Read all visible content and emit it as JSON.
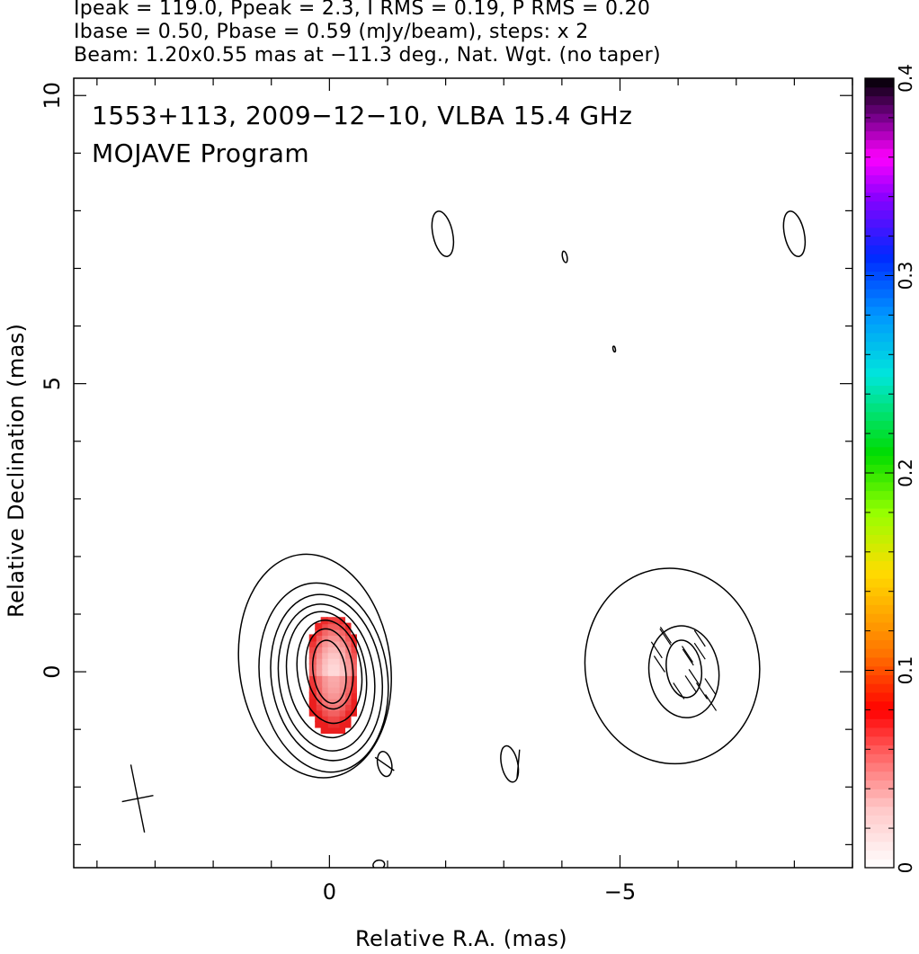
{
  "header": {
    "line1": "Ipeak = 119.0, Ppeak = 2.3, I RMS = 0.19, P RMS = 0.20",
    "line2": "Ibase = 0.50, Pbase = 0.59 (mJy/beam), steps: x 2",
    "line3": "Beam: 1.20x0.55 mas at −11.3 deg., Nat. Wgt. (no taper)"
  },
  "overlay": {
    "title": "1553+113, 2009−12−10, VLBA 15.4 GHz",
    "subtitle": "MOJAVE Program"
  },
  "chart_data": {
    "type": "contour",
    "xlabel": "Relative R.A. (mas)",
    "ylabel": "Relative Declination (mas)",
    "xlim": [
      4.4,
      -9.0
    ],
    "ylim": [
      -3.4,
      10.3
    ],
    "x_ticks": [
      0,
      -5
    ],
    "x_tick_labels": [
      "0",
      "−5"
    ],
    "y_ticks": [
      0,
      5,
      10
    ],
    "y_tick_labels": [
      "0",
      "5",
      "10"
    ],
    "colorbar": {
      "min": 0,
      "max": 0.4,
      "ticks": [
        0,
        0.1,
        0.2,
        0.3,
        0.4
      ],
      "tick_labels": [
        "0",
        "0.1",
        "0.2",
        "0.3",
        "0.4"
      ],
      "colormap": "rainbow-white-low"
    },
    "core_contours": [
      {
        "cx": 0.25,
        "cy": 0.1,
        "rx": 1.3,
        "ry": 1.95
      },
      {
        "cx": 0.1,
        "cy": -0.1,
        "rx": 1.1,
        "ry": 1.65
      },
      {
        "cx": 0.05,
        "cy": -0.1,
        "rx": 0.95,
        "ry": 1.45
      },
      {
        "cx": 0.05,
        "cy": -0.1,
        "rx": 0.82,
        "ry": 1.28
      },
      {
        "cx": 0.05,
        "cy": -0.05,
        "rx": 0.68,
        "ry": 1.1
      },
      {
        "cx": 0.0,
        "cy": 0.0,
        "rx": 0.55,
        "ry": 0.9
      },
      {
        "cx": 0.0,
        "cy": 0.05,
        "rx": 0.4,
        "ry": 0.7
      },
      {
        "cx": 0.0,
        "cy": 0.0,
        "rx": 0.28,
        "ry": 0.55
      }
    ],
    "jet_contours": [
      {
        "cx": -5.9,
        "cy": 0.1,
        "rx": 1.5,
        "ry": 1.7
      },
      {
        "cx": -6.1,
        "cy": 0.0,
        "rx": 0.6,
        "ry": 0.8
      },
      {
        "cx": -6.1,
        "cy": 0.05,
        "rx": 0.3,
        "ry": 0.5
      }
    ],
    "small_contours": [
      {
        "cx": -1.95,
        "cy": 7.6,
        "rx": 0.17,
        "ry": 0.4
      },
      {
        "cx": -8.0,
        "cy": 7.6,
        "rx": 0.17,
        "ry": 0.4
      },
      {
        "cx": -4.05,
        "cy": 7.2,
        "rx": 0.04,
        "ry": 0.1
      },
      {
        "cx": -4.9,
        "cy": 5.6,
        "rx": 0.02,
        "ry": 0.05
      },
      {
        "cx": -0.95,
        "cy": -1.6,
        "rx": 0.12,
        "ry": 0.22
      },
      {
        "cx": -3.1,
        "cy": -1.6,
        "rx": 0.14,
        "ry": 0.32
      },
      {
        "cx": -0.85,
        "cy": -3.35,
        "rx": 0.1,
        "ry": 0.08
      }
    ],
    "polarization_pixels": {
      "cx": 0.0,
      "cy": -0.1,
      "rx": 0.45,
      "ry": 1.05,
      "value_range": [
        0.02,
        0.07
      ]
    },
    "evpa_vectors": [
      {
        "x": -0.95,
        "y": -1.6,
        "angle_deg": 125,
        "length": 0.4
      },
      {
        "x": -3.25,
        "y": -1.6,
        "angle_deg": 5,
        "length": 0.5
      }
    ],
    "beam": {
      "major_mas": 1.2,
      "minor_mas": 0.55,
      "pa_deg": -11.3,
      "x": 3.3,
      "y": -2.2
    }
  },
  "colors": {
    "contour": "#000000",
    "pol_low": "#ffe0e0",
    "pol_high": "#e81010"
  }
}
